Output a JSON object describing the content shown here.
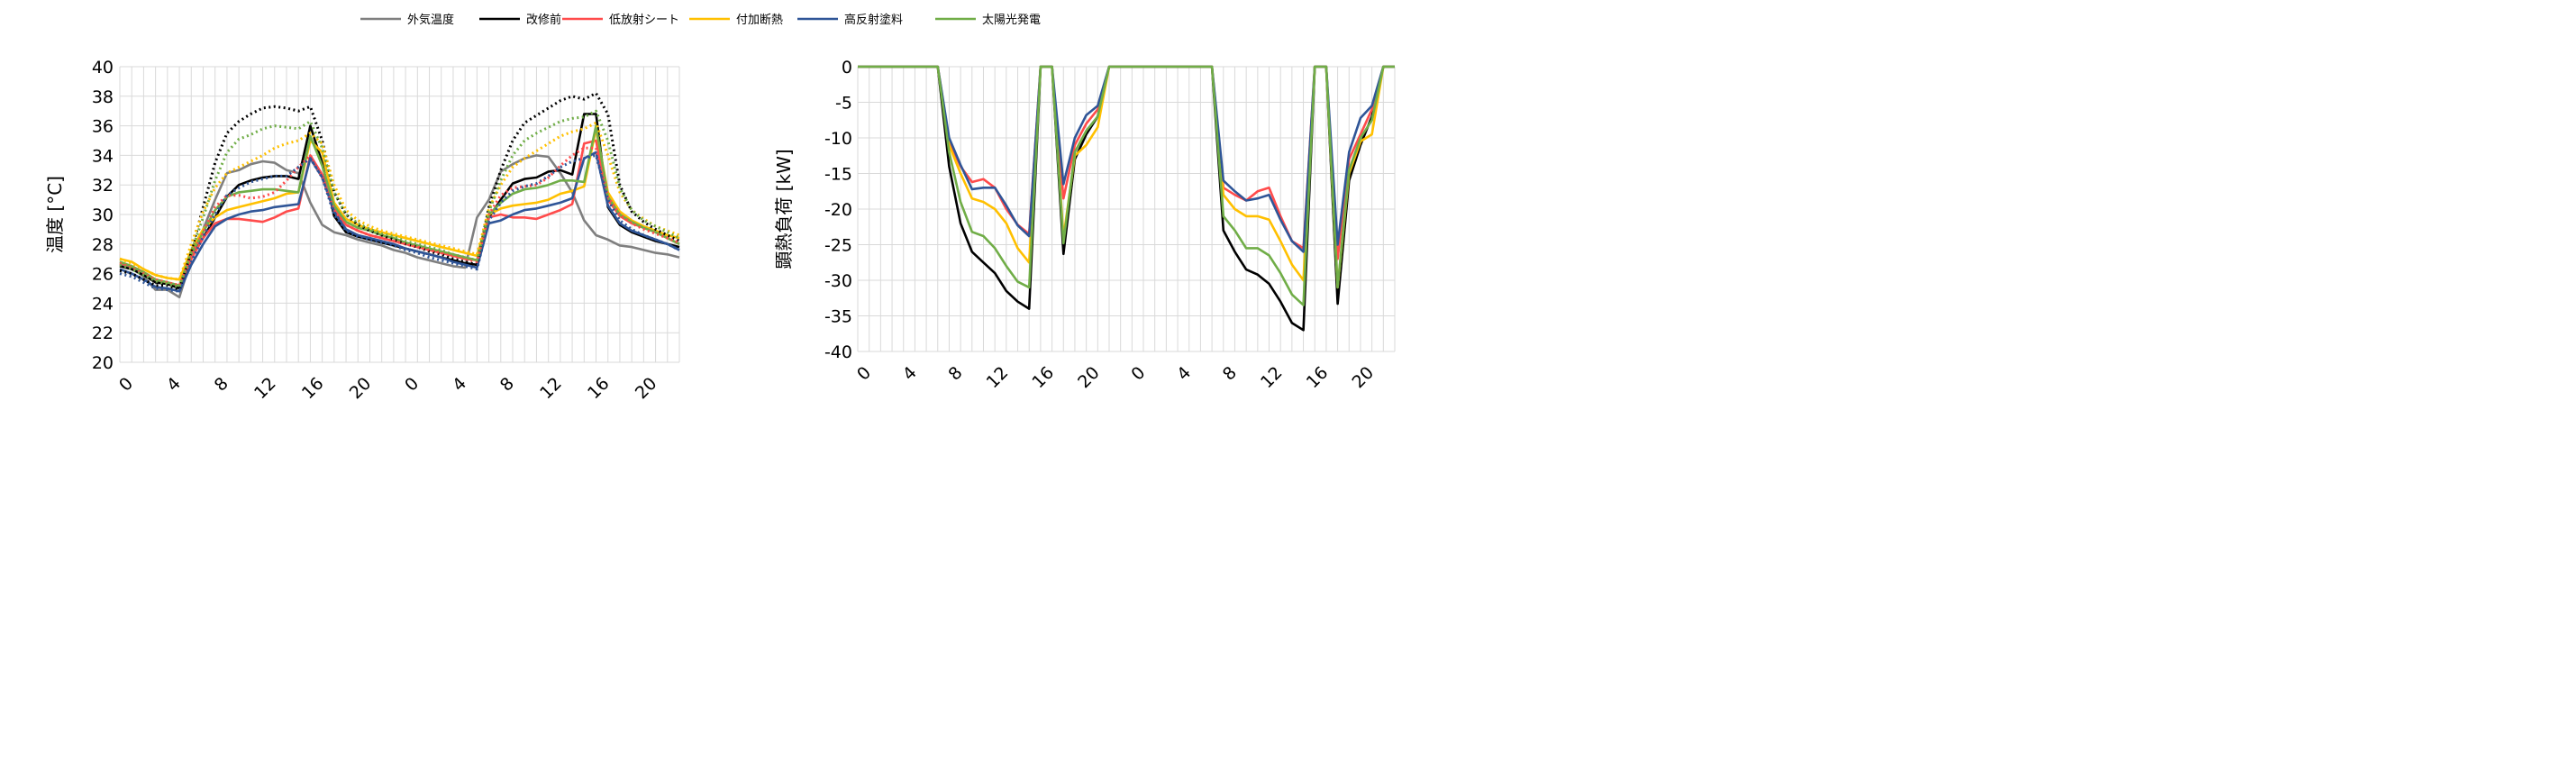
{
  "legend": {
    "items": [
      {
        "label": "外気温度",
        "color": "#7f7f7f"
      },
      {
        "label": "改修前",
        "color": "#000000"
      },
      {
        "label": "低放射シート",
        "color": "#ff4b4b"
      },
      {
        "label": "付加断熱",
        "color": "#ffc000"
      },
      {
        "label": "高反射塗料",
        "color": "#2f5597"
      },
      {
        "label": "太陽光発電",
        "color": "#70ad47"
      }
    ]
  },
  "chart_data": [
    {
      "type": "line",
      "ylabel": "温度 [°C]",
      "xlabel": "",
      "ylim": [
        20,
        40
      ],
      "yticks": [
        "20",
        "22",
        "24",
        "26",
        "28",
        "30",
        "32",
        "34",
        "36",
        "38",
        "40"
      ],
      "xticks": [
        "0",
        "4",
        "8",
        "12",
        "16",
        "20",
        "0",
        "4",
        "8",
        "12",
        "16",
        "20"
      ],
      "x": [
        0,
        1,
        2,
        3,
        4,
        5,
        6,
        7,
        8,
        9,
        10,
        11,
        12,
        13,
        14,
        15,
        16,
        17,
        18,
        19,
        20,
        21,
        22,
        23,
        24,
        25,
        26,
        27,
        28,
        29,
        30,
        31,
        32,
        33,
        34,
        35,
        36,
        37,
        38,
        39,
        40,
        41,
        42,
        43,
        44,
        45,
        46,
        47
      ],
      "grid": true,
      "series": [
        {
          "name": "外気温度",
          "style": "solid",
          "color": "#7f7f7f",
          "values": [
            26.6,
            26.4,
            25.8,
            24.9,
            24.9,
            24.4,
            27.0,
            29.0,
            31.0,
            32.8,
            33.0,
            33.4,
            33.6,
            33.5,
            33.0,
            32.8,
            30.8,
            29.3,
            28.8,
            28.6,
            28.3,
            28.1,
            27.9,
            27.6,
            27.4,
            27.1,
            26.9,
            26.7,
            26.5,
            26.4,
            29.8,
            31.0,
            32.9,
            33.4,
            33.8,
            34.0,
            33.9,
            32.8,
            31.5,
            29.6,
            28.6,
            28.3,
            27.9,
            27.8,
            27.6,
            27.4,
            27.3,
            27.1
          ]
        },
        {
          "name": "改修前",
          "style": "solid",
          "color": "#000000",
          "values": [
            26.5,
            26.3,
            25.9,
            25.4,
            25.3,
            25.0,
            27.2,
            28.4,
            29.8,
            31.2,
            32.0,
            32.3,
            32.5,
            32.6,
            32.6,
            32.4,
            36.0,
            33.5,
            29.9,
            28.8,
            28.5,
            28.3,
            28.1,
            27.9,
            27.7,
            27.5,
            27.3,
            27.1,
            26.9,
            26.7,
            26.6,
            29.8,
            31.0,
            32.1,
            32.4,
            32.5,
            32.9,
            33.0,
            32.7,
            36.8,
            36.8,
            30.5,
            29.3,
            28.8,
            28.5,
            28.2,
            28.0,
            27.8
          ]
        },
        {
          "name": "低放射シート",
          "style": "solid",
          "color": "#ff4b4b",
          "values": [
            26.7,
            26.5,
            26.1,
            25.6,
            25.4,
            25.2,
            27.0,
            28.4,
            29.4,
            29.7,
            29.7,
            29.6,
            29.5,
            29.8,
            30.2,
            30.4,
            34.0,
            32.7,
            30.4,
            29.3,
            28.9,
            28.6,
            28.4,
            28.2,
            28.0,
            27.8,
            27.6,
            27.4,
            27.2,
            27.0,
            26.9,
            29.8,
            30.0,
            29.8,
            29.8,
            29.7,
            30.0,
            30.3,
            30.7,
            34.8,
            35.0,
            31.0,
            29.9,
            29.4,
            29.1,
            28.8,
            28.4,
            28.0
          ]
        },
        {
          "name": "付加断熱",
          "style": "solid",
          "color": "#ffc000",
          "values": [
            27.0,
            26.8,
            26.3,
            25.9,
            25.7,
            25.6,
            27.6,
            29.0,
            29.8,
            30.3,
            30.5,
            30.7,
            30.9,
            31.1,
            31.4,
            31.5,
            35.0,
            34.2,
            30.8,
            29.7,
            29.3,
            29.0,
            28.8,
            28.6,
            28.4,
            28.2,
            28.0,
            27.8,
            27.6,
            27.4,
            27.2,
            30.0,
            30.4,
            30.6,
            30.7,
            30.8,
            31.0,
            31.4,
            31.6,
            31.9,
            35.8,
            31.5,
            30.2,
            29.6,
            29.2,
            28.9,
            28.6,
            28.4
          ]
        },
        {
          "name": "高反射塗料",
          "style": "solid",
          "color": "#2f5597",
          "values": [
            26.3,
            26.0,
            25.6,
            25.1,
            25.0,
            24.8,
            26.6,
            28.0,
            29.2,
            29.7,
            30.0,
            30.2,
            30.3,
            30.5,
            30.6,
            30.7,
            33.8,
            32.5,
            30.2,
            29.0,
            28.6,
            28.4,
            28.2,
            28.0,
            27.7,
            27.5,
            27.3,
            27.1,
            26.8,
            26.6,
            26.4,
            29.4,
            29.6,
            30.0,
            30.3,
            30.4,
            30.6,
            30.8,
            31.1,
            33.8,
            34.2,
            30.6,
            29.4,
            28.9,
            28.6,
            28.3,
            28.0,
            27.6
          ]
        },
        {
          "name": "太陽光発電",
          "style": "solid",
          "color": "#70ad47",
          "values": [
            26.8,
            26.5,
            26.1,
            25.6,
            25.4,
            25.2,
            27.3,
            28.8,
            30.3,
            31.2,
            31.5,
            31.6,
            31.7,
            31.7,
            31.6,
            31.5,
            35.3,
            33.3,
            30.6,
            29.5,
            29.1,
            28.9,
            28.6,
            28.4,
            28.1,
            27.9,
            27.7,
            27.5,
            27.3,
            27.1,
            26.9,
            30.0,
            30.8,
            31.4,
            31.7,
            31.8,
            32.0,
            32.3,
            32.3,
            32.2,
            36.0,
            31.2,
            30.0,
            29.5,
            29.1,
            28.8,
            28.4,
            28.0
          ]
        },
        {
          "name": "",
          "style": "dotted",
          "color": "#000000",
          "values": [
            26.2,
            26.0,
            25.6,
            25.2,
            25.2,
            24.9,
            27.5,
            30.5,
            33.5,
            35.5,
            36.3,
            36.8,
            37.2,
            37.3,
            37.2,
            37.0,
            37.3,
            35.0,
            31.5,
            30.0,
            29.3,
            28.9,
            28.6,
            28.3,
            28.0,
            27.8,
            27.5,
            27.3,
            27.0,
            26.8,
            26.6,
            30.5,
            33.0,
            35.0,
            36.2,
            36.7,
            37.2,
            37.7,
            38.0,
            37.8,
            38.2,
            36.8,
            32.0,
            30.2,
            29.5,
            29.0,
            28.6,
            28.2
          ]
        },
        {
          "name": "",
          "style": "dotted",
          "color": "#ff4b4b",
          "values": [
            26.7,
            26.4,
            26.0,
            25.6,
            25.4,
            25.2,
            27.2,
            28.8,
            30.5,
            31.3,
            31.3,
            31.1,
            31.2,
            31.5,
            32.3,
            33.2,
            34.0,
            32.5,
            30.3,
            29.3,
            28.9,
            28.6,
            28.4,
            28.2,
            28.0,
            27.8,
            27.6,
            27.4,
            27.2,
            27.0,
            26.8,
            30.0,
            31.3,
            31.8,
            31.9,
            32.0,
            32.5,
            33.3,
            34.0,
            34.5,
            34.5,
            31.2,
            30.0,
            29.4,
            29.0,
            28.7,
            28.4,
            28.1
          ]
        },
        {
          "name": "",
          "style": "dotted",
          "color": "#ffc000",
          "values": [
            27.0,
            26.7,
            26.3,
            25.9,
            25.7,
            25.6,
            28.0,
            30.2,
            31.8,
            32.8,
            33.2,
            33.6,
            34.0,
            34.5,
            34.8,
            35.0,
            35.5,
            34.8,
            32.0,
            30.3,
            29.6,
            29.2,
            28.9,
            28.7,
            28.5,
            28.3,
            28.1,
            27.9,
            27.7,
            27.5,
            27.3,
            30.4,
            32.0,
            33.2,
            33.8,
            34.3,
            34.8,
            35.3,
            35.6,
            35.8,
            36.2,
            34.0,
            31.5,
            30.3,
            29.7,
            29.2,
            28.9,
            28.6
          ]
        },
        {
          "name": "",
          "style": "dotted",
          "color": "#2f5597",
          "values": [
            26.0,
            25.8,
            25.4,
            25.0,
            24.9,
            24.8,
            26.8,
            28.5,
            30.0,
            31.3,
            31.8,
            32.2,
            32.4,
            32.6,
            32.6,
            33.2,
            33.8,
            32.5,
            30.0,
            28.9,
            28.5,
            28.3,
            28.1,
            27.9,
            27.6,
            27.4,
            27.1,
            26.9,
            26.7,
            26.5,
            26.3,
            29.6,
            30.8,
            31.6,
            31.9,
            32.1,
            32.6,
            33.2,
            33.6,
            33.8,
            34.0,
            31.0,
            29.6,
            29.0,
            28.6,
            28.3,
            28.0,
            27.6
          ]
        },
        {
          "name": "",
          "style": "dotted",
          "color": "#70ad47",
          "values": [
            26.6,
            26.3,
            25.9,
            25.5,
            25.3,
            25.1,
            27.5,
            29.8,
            32.3,
            34.2,
            35.1,
            35.4,
            35.8,
            36.0,
            35.9,
            35.8,
            36.3,
            34.5,
            31.5,
            30.0,
            29.4,
            29.0,
            28.7,
            28.5,
            28.2,
            28.0,
            27.8,
            27.6,
            27.3,
            27.1,
            26.9,
            30.2,
            32.3,
            34.0,
            35.0,
            35.5,
            35.9,
            36.3,
            36.5,
            36.6,
            37.0,
            35.0,
            31.8,
            30.3,
            29.6,
            29.2,
            28.8,
            28.4
          ]
        }
      ]
    },
    {
      "type": "line",
      "ylabel": "顕熱負荷 [kW]",
      "xlabel": "",
      "ylim": [
        -40,
        0
      ],
      "yticks": [
        "-40",
        "-35",
        "-30",
        "-25",
        "-20",
        "-15",
        "-10",
        "-5",
        "0"
      ],
      "xticks": [
        "0",
        "4",
        "8",
        "12",
        "16",
        "20",
        "0",
        "4",
        "8",
        "12",
        "16",
        "20"
      ],
      "x": [
        0,
        1,
        2,
        3,
        4,
        5,
        6,
        7,
        8,
        9,
        10,
        11,
        12,
        13,
        14,
        15,
        16,
        17,
        18,
        19,
        20,
        21,
        22,
        23,
        24,
        25,
        26,
        27,
        28,
        29,
        30,
        31,
        32,
        33,
        34,
        35,
        36,
        37,
        38,
        39,
        40,
        41,
        42,
        43,
        44,
        45,
        46,
        47
      ],
      "grid": true,
      "series": [
        {
          "name": "改修前",
          "color": "#000000",
          "values": [
            0,
            0,
            0,
            0,
            0,
            0,
            0,
            0,
            -14,
            -22,
            -26,
            -27.5,
            -29,
            -31.5,
            -33,
            -34,
            0,
            0,
            -26.3,
            -13,
            -9.5,
            -7,
            0,
            0,
            0,
            0,
            0,
            0,
            0,
            0,
            0,
            0,
            -23,
            -26,
            -28.5,
            -29.2,
            -30.5,
            -33,
            -36,
            -37,
            0,
            0,
            -33.3,
            -16,
            -11,
            -7,
            0,
            0
          ]
        },
        {
          "name": "低放射シート",
          "color": "#ff4b4b",
          "values": [
            0,
            0,
            0,
            0,
            0,
            0,
            0,
            0,
            -10.5,
            -14,
            -16.2,
            -15.8,
            -17,
            -20,
            -22.2,
            -23.5,
            0,
            0,
            -18.5,
            -11,
            -8,
            -6,
            0,
            0,
            0,
            0,
            0,
            0,
            0,
            0,
            0,
            0,
            -17,
            -18,
            -18.8,
            -17.5,
            -17,
            -21,
            -24.5,
            -25.5,
            0,
            0,
            -27,
            -13,
            -9.5,
            -6,
            0,
            0
          ]
        },
        {
          "name": "付加断熱",
          "color": "#ffc000",
          "values": [
            0,
            0,
            0,
            0,
            0,
            0,
            0,
            0,
            -11,
            -15,
            -18.5,
            -19,
            -20,
            -22,
            -25.5,
            -27.5,
            0,
            0,
            -24,
            -12.5,
            -11,
            -8.5,
            0,
            0,
            0,
            0,
            0,
            0,
            0,
            0,
            0,
            0,
            -18,
            -20,
            -21,
            -21,
            -21.5,
            -24.5,
            -27.8,
            -30,
            0,
            0,
            -31,
            -15,
            -10.5,
            -9.5,
            0,
            0
          ]
        },
        {
          "name": "高反射塗料",
          "color": "#2f5597",
          "values": [
            0,
            0,
            0,
            0,
            0,
            0,
            0,
            0,
            -10,
            -13.8,
            -17.2,
            -17,
            -17,
            -19.5,
            -22.3,
            -23.8,
            0,
            0,
            -16.5,
            -10,
            -6.8,
            -5.5,
            0,
            0,
            0,
            0,
            0,
            0,
            0,
            0,
            0,
            0,
            -16,
            -17.5,
            -18.8,
            -18.5,
            -18,
            -21.5,
            -24.5,
            -26,
            0,
            0,
            -25,
            -12,
            -7.2,
            -5.5,
            0,
            0
          ]
        },
        {
          "name": "太陽光発電",
          "color": "#70ad47",
          "values": [
            0,
            0,
            0,
            0,
            0,
            0,
            0,
            0,
            -12,
            -19,
            -23.2,
            -23.8,
            -25.5,
            -28,
            -30.2,
            -31,
            0,
            0,
            -24.8,
            -12,
            -9,
            -7,
            0,
            0,
            0,
            0,
            0,
            0,
            0,
            0,
            0,
            0,
            -21,
            -23,
            -25.5,
            -25.5,
            -26.5,
            -29,
            -32,
            -33.5,
            0,
            0,
            -31,
            -14.5,
            -10,
            -7.5,
            0,
            0
          ]
        }
      ]
    }
  ]
}
